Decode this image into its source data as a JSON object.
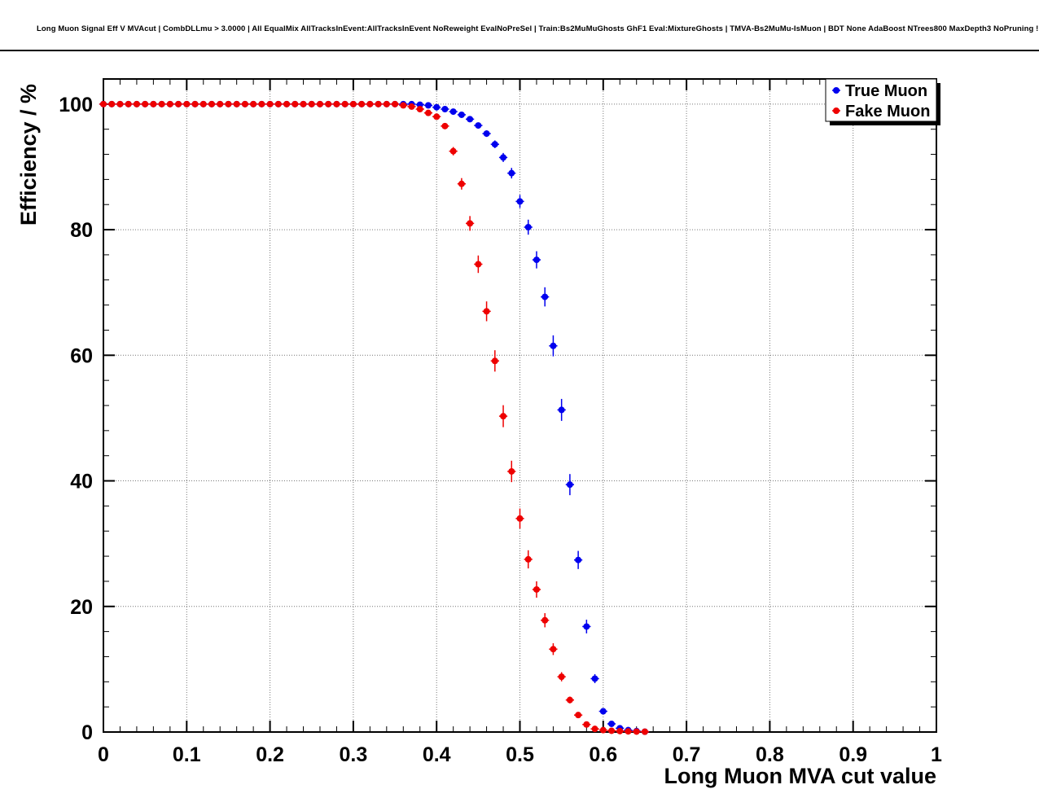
{
  "title": "Long Muon Signal Eff V MVAcut | CombDLLmu > 3.0000 | All EqualMix AllTracksInEvent:AllTracksInEvent NoReweight EvalNoPreSel | Train:Bs2MuMuGhosts GhF1 Eval:MixtureGhosts | TMVA-Bs2MuMu-IsMuon | BDT None AdaBoost NTrees800 MaxDepth3 NoPruning !UseReg",
  "colors": {
    "true_muon": "#0000ee",
    "fake_muon": "#ee0000",
    "frame": "#000000",
    "grid": "#777777",
    "background": "#ffffff"
  },
  "chart_data": {
    "type": "scatter",
    "title": "",
    "xlabel": "Long Muon MVA cut value",
    "ylabel": "Efficiency / %",
    "xlim": [
      0,
      1
    ],
    "ylim": [
      0,
      104
    ],
    "grid": true,
    "legend_position": "top-right",
    "x_ticks": [
      0,
      0.1,
      0.2,
      0.3,
      0.4,
      0.5,
      0.6,
      0.7,
      0.8,
      0.9,
      1
    ],
    "x_tick_labels": [
      "0",
      "0.1",
      "0.2",
      "0.3",
      "0.4",
      "0.5",
      "0.6",
      "0.7",
      "0.8",
      "0.9",
      "1"
    ],
    "y_ticks": [
      0,
      20,
      40,
      60,
      80,
      100
    ],
    "y_tick_labels": [
      "0",
      "20",
      "40",
      "60",
      "80",
      "100"
    ],
    "x_minor_step": 0.02,
    "y_minor_step": 4,
    "x_bin_halfwidth": 0.005,
    "x": [
      0,
      0.01,
      0.02,
      0.03,
      0.04,
      0.05,
      0.06,
      0.07,
      0.08,
      0.09,
      0.1,
      0.11,
      0.12,
      0.13,
      0.14,
      0.15,
      0.16,
      0.17,
      0.18,
      0.19,
      0.2,
      0.21,
      0.22,
      0.23,
      0.24,
      0.25,
      0.26,
      0.27,
      0.28,
      0.29,
      0.3,
      0.31,
      0.32,
      0.33,
      0.34,
      0.35,
      0.36,
      0.37,
      0.38,
      0.39,
      0.4,
      0.41,
      0.42,
      0.43,
      0.44,
      0.45,
      0.46,
      0.47,
      0.48,
      0.49,
      0.5,
      0.51,
      0.52,
      0.53,
      0.54,
      0.55,
      0.56,
      0.57,
      0.58,
      0.59,
      0.6,
      0.61,
      0.62,
      0.63,
      0.64,
      0.65
    ],
    "series": [
      {
        "name": "True Muon",
        "color": "#0000ee",
        "y": [
          100,
          100,
          100,
          100,
          100,
          100,
          100,
          100,
          100,
          100,
          100,
          100,
          100,
          100,
          100,
          100,
          100,
          100,
          100,
          100,
          100,
          100,
          100,
          100,
          100,
          100,
          100,
          100,
          100,
          100,
          100,
          100,
          100,
          100,
          100,
          100,
          100,
          100,
          99.9,
          99.8,
          99.5,
          99.2,
          98.8,
          98.3,
          97.6,
          96.6,
          95.3,
          93.6,
          91.5,
          89,
          84.5,
          80.4,
          75.2,
          69.3,
          61.5,
          51.3,
          39.4,
          27.4,
          16.8,
          8.5,
          3.3,
          1.3,
          0.6,
          0.3,
          0.15,
          0.05
        ]
      },
      {
        "name": "Fake Muon",
        "color": "#ee0000",
        "y": [
          100,
          100,
          100,
          100,
          100,
          100,
          100,
          100,
          100,
          100,
          100,
          100,
          100,
          100,
          100,
          100,
          100,
          100,
          100,
          100,
          100,
          100,
          100,
          100,
          100,
          100,
          100,
          100,
          100,
          100,
          100,
          100,
          100,
          100,
          100,
          100,
          99.8,
          99.6,
          99.2,
          98.6,
          98,
          96.5,
          92.5,
          87.3,
          81,
          74.5,
          67,
          59.1,
          50.3,
          41.5,
          34,
          27.5,
          22.7,
          17.8,
          13.2,
          8.8,
          5.1,
          2.7,
          1.2,
          0.5,
          0.3,
          0.2,
          0.15,
          0.1,
          0.07,
          0.05
        ]
      }
    ]
  }
}
